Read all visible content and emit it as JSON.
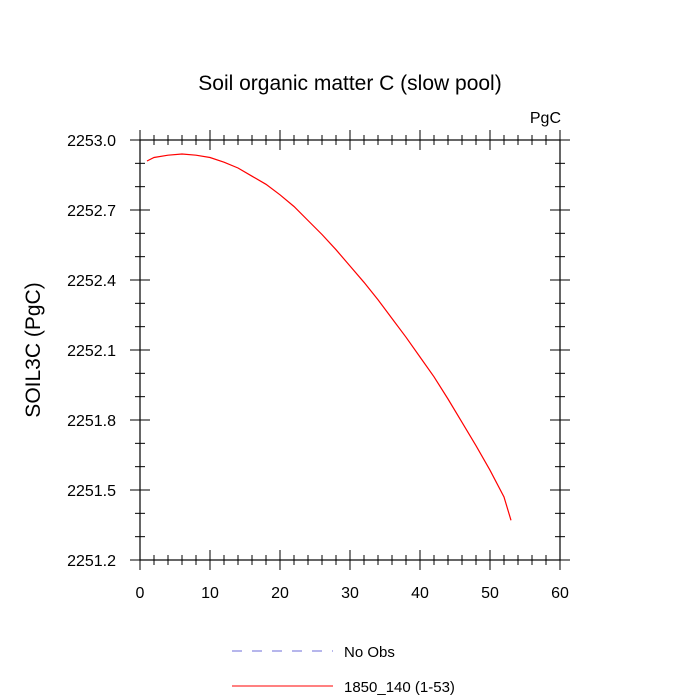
{
  "chart_data": {
    "type": "line",
    "title": "Soil organic matter C (slow pool)",
    "units_label": "PgC",
    "ylabel": "SOIL3C  (PgC)",
    "xlabel": "",
    "xlim": [
      0,
      60
    ],
    "ylim": [
      2251.2,
      2253.0
    ],
    "x_ticks": [
      0,
      10,
      20,
      30,
      40,
      50,
      60
    ],
    "x_tick_labels": [
      "0",
      "10",
      "20",
      "30",
      "40",
      "50",
      "60"
    ],
    "y_ticks": [
      2251.2,
      2251.5,
      2251.8,
      2252.1,
      2252.4,
      2252.7,
      2253.0
    ],
    "y_tick_labels": [
      "2251.2",
      "2251.5",
      "2251.8",
      "2252.1",
      "2252.4",
      "2252.7",
      "2253.0"
    ],
    "grid": false,
    "legend_position": "bottom",
    "series": [
      {
        "name": "No Obs",
        "color": "#6e6ed8",
        "dash": "dashed",
        "x": [],
        "y": []
      },
      {
        "name": "1850_140 (1-53)",
        "color": "#ff0000",
        "dash": "solid",
        "x": [
          1,
          2,
          4,
          6,
          8,
          10,
          12,
          14,
          16,
          18,
          20,
          22,
          24,
          26,
          28,
          30,
          32,
          34,
          36,
          38,
          40,
          42,
          44,
          46,
          48,
          50,
          52,
          53
        ],
        "y": [
          2252.91,
          2252.925,
          2252.935,
          2252.94,
          2252.935,
          2252.925,
          2252.905,
          2252.88,
          2252.845,
          2252.81,
          2252.765,
          2252.715,
          2252.655,
          2252.595,
          2252.53,
          2252.46,
          2252.39,
          2252.315,
          2252.235,
          2252.155,
          2252.07,
          2251.985,
          2251.89,
          2251.79,
          2251.69,
          2251.585,
          2251.47,
          2251.37
        ]
      }
    ]
  }
}
